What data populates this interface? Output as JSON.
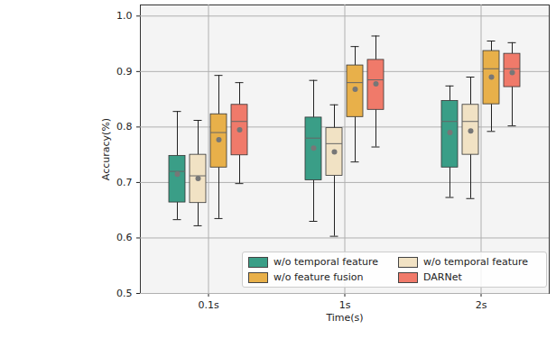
{
  "chart_data": {
    "type": "boxplot",
    "x_label": "Time(s)",
    "y_label": "Accuracy(%)",
    "categories": [
      "0.1s",
      "1s",
      "2s"
    ],
    "ylim": [
      0.5,
      1.02
    ],
    "yticks": [
      {
        "value": 0.5,
        "label": "0.5"
      },
      {
        "value": 0.6,
        "label": "0.6"
      },
      {
        "value": 0.7,
        "label": "0.7"
      },
      {
        "value": 0.8,
        "label": "0.8"
      },
      {
        "value": 0.9,
        "label": "0.9"
      },
      {
        "value": 1.0,
        "label": "1.0"
      }
    ],
    "grid": true,
    "legend": "lower right",
    "series": [
      {
        "name": "w/o temporal feature",
        "color": "#3a9e87",
        "whisker_low": [
          0.633,
          0.63,
          0.673
        ],
        "q1": [
          0.664,
          0.704,
          0.727
        ],
        "values": [
          0.72,
          0.78,
          0.81
        ],
        "q3": [
          0.748,
          0.817,
          0.847
        ],
        "whisker_high": [
          0.828,
          0.884,
          0.874
        ],
        "mean": [
          0.715,
          0.762,
          0.79
        ]
      },
      {
        "name": "w/o temporal feature",
        "color": "#f1e2c4",
        "whisker_low": [
          0.622,
          0.603,
          0.671
        ],
        "q1": [
          0.663,
          0.712,
          0.75
        ],
        "values": [
          0.712,
          0.77,
          0.81
        ],
        "q3": [
          0.75,
          0.798,
          0.84
        ],
        "whisker_high": [
          0.812,
          0.84,
          0.89
        ],
        "mean": [
          0.707,
          0.755,
          0.793
        ]
      },
      {
        "name": "w/o feature fusion",
        "color": "#e8b04a",
        "whisker_low": [
          0.635,
          0.737,
          0.792
        ],
        "q1": [
          0.727,
          0.818,
          0.841
        ],
        "values": [
          0.79,
          0.88,
          0.905
        ],
        "q3": [
          0.823,
          0.911,
          0.937
        ],
        "whisker_high": [
          0.893,
          0.945,
          0.955
        ],
        "mean": [
          0.777,
          0.868,
          0.89
        ]
      },
      {
        "name": "DARNet",
        "color": "#f07a6a",
        "whisker_low": [
          0.698,
          0.764,
          0.802
        ],
        "q1": [
          0.749,
          0.831,
          0.872
        ],
        "values": [
          0.81,
          0.885,
          0.905
        ],
        "q3": [
          0.84,
          0.921,
          0.932
        ],
        "whisker_high": [
          0.88,
          0.964,
          0.952
        ],
        "mean": [
          0.795,
          0.878,
          0.898
        ]
      }
    ]
  }
}
